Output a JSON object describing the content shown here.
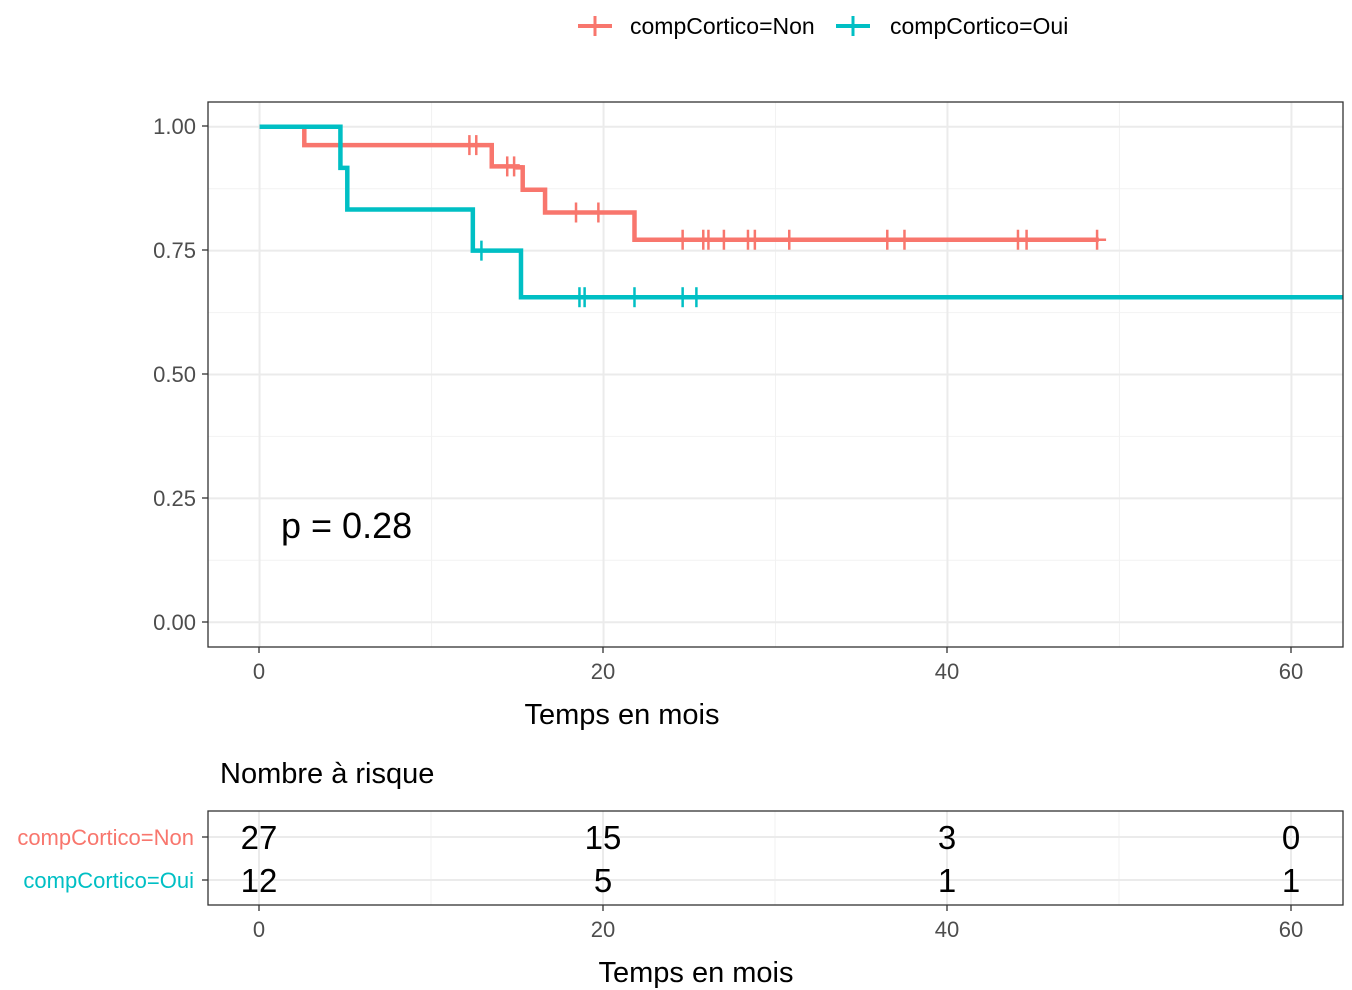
{
  "legend": {
    "items": [
      {
        "label": "compCortico=Non",
        "color": "#F8766D"
      },
      {
        "label": "compCortico=Oui",
        "color": "#00BFC4"
      }
    ]
  },
  "plot": {
    "p_value_text": "p = 0.28",
    "xlabel": "Temps en mois",
    "x_ticks": [
      "0",
      "20",
      "40",
      "60"
    ],
    "y_ticks": [
      "0.00",
      "0.25",
      "0.50",
      "0.75",
      "1.00"
    ]
  },
  "risk_table": {
    "title": "Nombre à risque",
    "xlabel": "Temps en mois",
    "x_ticks": [
      "0",
      "20",
      "40",
      "60"
    ],
    "rows": [
      {
        "label": "compCortico=Non",
        "color": "#F8766D",
        "values": [
          "27",
          "15",
          "3",
          "0"
        ]
      },
      {
        "label": "compCortico=Oui",
        "color": "#00BFC4",
        "values": [
          "12",
          "5",
          "1",
          "1"
        ]
      }
    ]
  },
  "chart_data": {
    "type": "line",
    "xlabel": "Temps en mois",
    "ylabel": "",
    "xlim": [
      -3,
      63
    ],
    "ylim": [
      -0.05,
      1.05
    ],
    "x_ticks": [
      0,
      20,
      40,
      60
    ],
    "y_ticks": [
      0,
      0.25,
      0.5,
      0.75,
      1.0
    ],
    "grid": true,
    "legend_position": "top",
    "series": [
      {
        "name": "compCortico=Non",
        "color": "#F8766D",
        "steps": [
          [
            0,
            1.0
          ],
          [
            2.6,
            0.963
          ],
          [
            13.5,
            0.92
          ],
          [
            15.0,
            0.918
          ],
          [
            15.3,
            0.873
          ],
          [
            16.6,
            0.827
          ],
          [
            21.8,
            0.772
          ],
          [
            48.8,
            0.772
          ]
        ],
        "censor_times": [
          12.2,
          12.6,
          14.4,
          14.8,
          18.4,
          19.7,
          24.6,
          25.8,
          26.1,
          27.0,
          28.4,
          28.8,
          30.8,
          36.5,
          37.5,
          44.1,
          44.6,
          48.7
        ]
      },
      {
        "name": "compCortico=Oui",
        "color": "#00BFC4",
        "steps": [
          [
            0,
            1.0
          ],
          [
            4.7,
            0.917
          ],
          [
            5.1,
            0.833
          ],
          [
            12.4,
            0.75
          ],
          [
            15.2,
            0.656
          ],
          [
            63,
            0.656
          ]
        ],
        "censor_times": [
          12.9,
          18.6,
          18.9,
          21.8,
          24.6,
          25.4
        ]
      }
    ],
    "annotations": [
      "p = 0.28"
    ]
  }
}
